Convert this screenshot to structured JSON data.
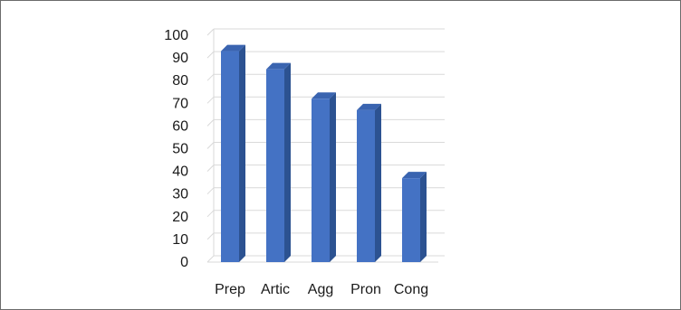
{
  "chart_data": {
    "type": "bar",
    "categories": [
      "Prep",
      "Artic",
      "Agg",
      "Pron",
      "Cong"
    ],
    "values": [
      93,
      85,
      72,
      67,
      37
    ],
    "ylim": [
      0,
      100
    ],
    "yticks": [
      0,
      10,
      20,
      30,
      40,
      50,
      60,
      70,
      80,
      90,
      100
    ],
    "grid": true,
    "legend": "none",
    "bar_style": "3d",
    "colors": {
      "bar_front": "#4472c4",
      "bar_side": "#2c5291",
      "bar_top": "#3a64b0",
      "grid": "#d9d9d9",
      "axis_text": "#1a1a1a"
    }
  }
}
